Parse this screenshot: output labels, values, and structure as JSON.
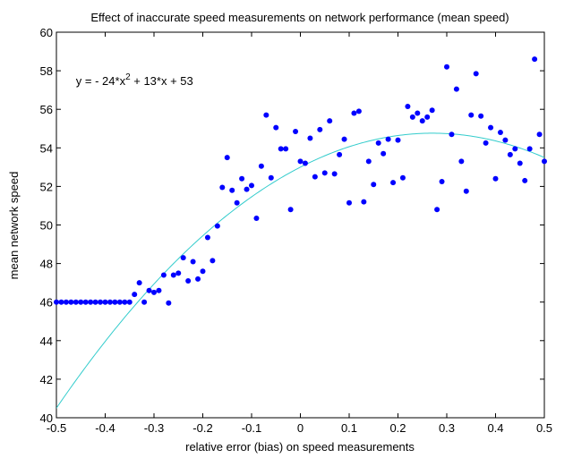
{
  "chart_data": {
    "type": "scatter",
    "title": "Effect of inaccurate speed measurements on network performance (mean speed)",
    "xlabel": "relative error (bias) on speed measurements",
    "ylabel": "mean network speed",
    "xlim": [
      -0.5,
      0.5
    ],
    "ylim": [
      40,
      60
    ],
    "xticks": [
      -0.5,
      -0.4,
      -0.3,
      -0.2,
      -0.1,
      0,
      0.1,
      0.2,
      0.3,
      0.4,
      0.5
    ],
    "xtick_labels": [
      "-0.5",
      "-0.4",
      "-0.3",
      "-0.2",
      "-0.1",
      "0",
      "0.1",
      "0.2",
      "0.3",
      "0.4",
      "0.5"
    ],
    "yticks": [
      40,
      42,
      44,
      46,
      48,
      50,
      52,
      54,
      56,
      58,
      60
    ],
    "ytick_labels": [
      "40",
      "42",
      "44",
      "46",
      "48",
      "50",
      "52",
      "54",
      "56",
      "58",
      "60"
    ],
    "annotation": {
      "prefix": "y = - 24*x",
      "exponent": "2",
      "suffix": " + 13*x + 53",
      "x": -0.46,
      "y": 57.5
    },
    "series": [
      {
        "color": "#0000ff",
        "marker": "dot",
        "points": [
          [
            -0.5,
            46
          ],
          [
            -0.49,
            46
          ],
          [
            -0.48,
            46
          ],
          [
            -0.47,
            46
          ],
          [
            -0.46,
            46
          ],
          [
            -0.45,
            46
          ],
          [
            -0.44,
            46
          ],
          [
            -0.43,
            46
          ],
          [
            -0.42,
            46
          ],
          [
            -0.41,
            46
          ],
          [
            -0.4,
            46
          ],
          [
            -0.39,
            46
          ],
          [
            -0.38,
            46
          ],
          [
            -0.37,
            46
          ],
          [
            -0.36,
            46
          ],
          [
            -0.35,
            46
          ],
          [
            -0.34,
            46.4
          ],
          [
            -0.33,
            47.0
          ],
          [
            -0.32,
            46.0
          ],
          [
            -0.31,
            46.6
          ],
          [
            -0.3,
            46.5
          ],
          [
            -0.29,
            46.6
          ],
          [
            -0.28,
            47.4
          ],
          [
            -0.27,
            45.95
          ],
          [
            -0.26,
            47.4
          ],
          [
            -0.25,
            47.5
          ],
          [
            -0.24,
            48.3
          ],
          [
            -0.23,
            47.1
          ],
          [
            -0.22,
            48.1
          ],
          [
            -0.21,
            47.2
          ],
          [
            -0.2,
            47.6
          ],
          [
            -0.19,
            49.35
          ],
          [
            -0.18,
            48.15
          ],
          [
            -0.17,
            49.95
          ],
          [
            -0.16,
            51.95
          ],
          [
            -0.15,
            53.5
          ],
          [
            -0.14,
            51.8
          ],
          [
            -0.13,
            51.15
          ],
          [
            -0.12,
            52.4
          ],
          [
            -0.11,
            51.85
          ],
          [
            -0.1,
            52.05
          ],
          [
            -0.09,
            50.35
          ],
          [
            -0.08,
            53.05
          ],
          [
            -0.07,
            55.7
          ],
          [
            -0.06,
            52.45
          ],
          [
            -0.05,
            55.05
          ],
          [
            -0.04,
            53.95
          ],
          [
            -0.03,
            53.95
          ],
          [
            -0.02,
            50.8
          ],
          [
            -0.01,
            54.85
          ],
          [
            0.0,
            53.3
          ],
          [
            0.01,
            53.2
          ],
          [
            0.02,
            54.5
          ],
          [
            0.03,
            52.5
          ],
          [
            0.04,
            54.95
          ],
          [
            0.05,
            52.7
          ],
          [
            0.06,
            55.4
          ],
          [
            0.07,
            52.65
          ],
          [
            0.08,
            53.65
          ],
          [
            0.09,
            54.45
          ],
          [
            0.1,
            51.15
          ],
          [
            0.11,
            55.8
          ],
          [
            0.12,
            55.9
          ],
          [
            0.13,
            51.2
          ],
          [
            0.14,
            53.3
          ],
          [
            0.15,
            52.1
          ],
          [
            0.16,
            54.25
          ],
          [
            0.17,
            53.7
          ],
          [
            0.18,
            54.45
          ],
          [
            0.19,
            52.2
          ],
          [
            0.2,
            54.4
          ],
          [
            0.21,
            52.45
          ],
          [
            0.22,
            56.15
          ],
          [
            0.23,
            55.6
          ],
          [
            0.24,
            55.8
          ],
          [
            0.25,
            55.4
          ],
          [
            0.26,
            55.6
          ],
          [
            0.27,
            55.95
          ],
          [
            0.28,
            50.8
          ],
          [
            0.29,
            52.25
          ],
          [
            0.3,
            58.2
          ],
          [
            0.31,
            54.7
          ],
          [
            0.32,
            57.05
          ],
          [
            0.33,
            53.3
          ],
          [
            0.34,
            51.75
          ],
          [
            0.35,
            55.7
          ],
          [
            0.36,
            57.85
          ],
          [
            0.37,
            55.65
          ],
          [
            0.38,
            54.25
          ],
          [
            0.39,
            55.05
          ],
          [
            0.4,
            52.4
          ],
          [
            0.41,
            54.8
          ],
          [
            0.42,
            54.4
          ],
          [
            0.43,
            53.65
          ],
          [
            0.44,
            53.95
          ],
          [
            0.45,
            53.2
          ],
          [
            0.46,
            52.3
          ],
          [
            0.47,
            53.95
          ],
          [
            0.48,
            58.6
          ],
          [
            0.49,
            54.7
          ],
          [
            0.5,
            53.3
          ]
        ]
      },
      {
        "color": "#33cccc",
        "type": "line",
        "fit": {
          "a": -24,
          "b": 13,
          "c": 53
        }
      }
    ]
  }
}
